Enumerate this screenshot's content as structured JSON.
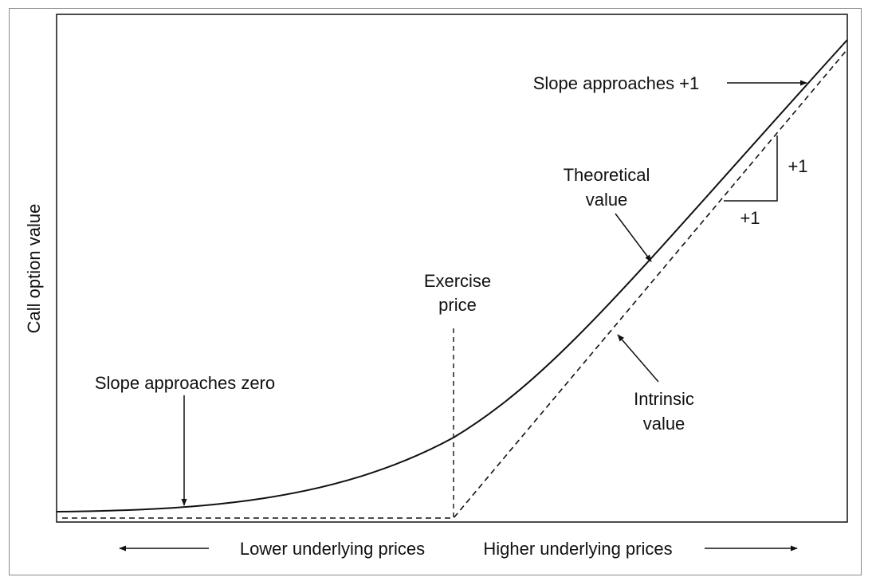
{
  "labels": {
    "y_axis": "Call option value",
    "slope_zero": "Slope approaches zero",
    "slope_one": "Slope approaches +1",
    "exercise_line1": "Exercise",
    "exercise_line2": "price",
    "theoretical_line1": "Theoretical",
    "theoretical_line2": "value",
    "intrinsic_line1": "Intrinsic",
    "intrinsic_line2": "value",
    "rise": "+1",
    "run": "+1",
    "lower_prices": "Lower underlying prices",
    "higher_prices": "Higher underlying prices"
  },
  "colors": {
    "line": "#111111",
    "frame": "#8a8a8a"
  }
}
